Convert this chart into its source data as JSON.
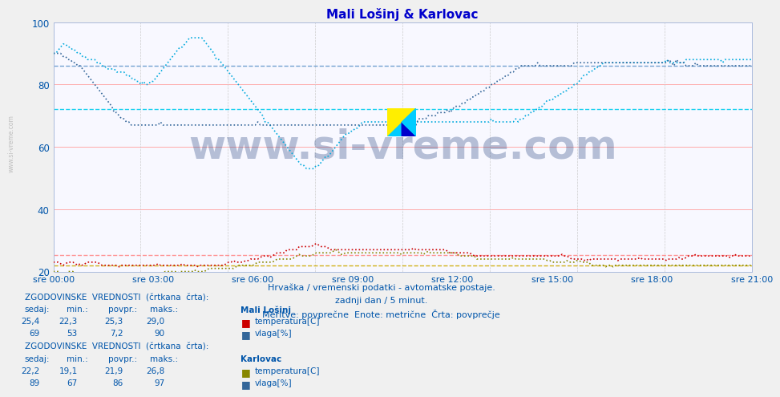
{
  "title": "Mali Lošinj & Karlovac",
  "subtitle_lines": [
    "Hrvaška / vremenski podatki - avtomatske postaje.",
    "zadnji dan / 5 minut.",
    "Meritve: povprečne  Enote: metrične  Črta: povprečje"
  ],
  "ylim": [
    20,
    100
  ],
  "yticks": [
    20,
    40,
    60,
    80,
    100
  ],
  "xtick_labels": [
    "sre 00:00",
    "sre 03:00",
    "sre 06:00",
    "sre 09:00",
    "sre 12:00",
    "sre 15:00",
    "sre 18:00",
    "sre 21:00"
  ],
  "n_points": 288,
  "background_color": "#f0f0f0",
  "plot_bg_color": "#f8f8ff",
  "grid_color_h": "#ffaaaa",
  "grid_color_v": "#cccccc",
  "watermark_text": "www.si-vreme.com",
  "watermark_color": "#1a3a7a",
  "watermark_alpha": 0.3,
  "title_color": "#0000cc",
  "subtitle_color": "#0055aa",
  "tick_color": "#0055aa",
  "mali_temp_color": "#cc0000",
  "mali_humidity_color": "#00aadd",
  "karlovac_temp_color": "#888800",
  "karlovac_humidity_color": "#336699",
  "avg_mali_temp_color": "#ff8888",
  "avg_mali_humidity_color": "#00ccee",
  "avg_karlovac_temp_color": "#ccaa00",
  "avg_karlovac_humidity_color": "#6699cc",
  "avg_mali_temp": 25.3,
  "avg_mali_humidity": 72.0,
  "avg_karlovac_temp": 21.9,
  "avg_karlovac_humidity": 86.0,
  "stats_color": "#0055aa",
  "legend_mali_temp_color": "#cc0000",
  "legend_mali_humidity_color": "#336699",
  "legend_karlovac_temp_color": "#888800",
  "legend_karlovac_humidity_color": "#336699"
}
